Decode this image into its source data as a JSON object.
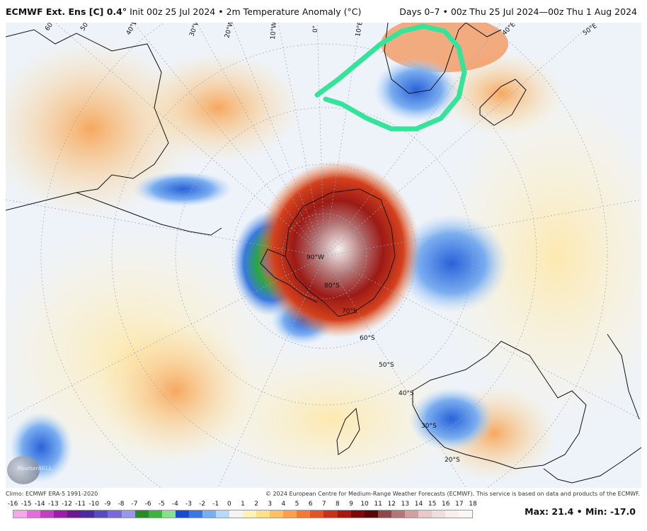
{
  "header": {
    "model": "ECMWF Ext. Ens [C] 0.4°",
    "init": "Init 00z 25 Jul 2024",
    "sep": "•",
    "field": "2m Temperature Anomaly (°C)",
    "range": "Days 0–7 • 00z Thu 25 Jul 2024—00z Thu 1 Aug 2024"
  },
  "map": {
    "lon_labels": [
      "60°W",
      "50°W",
      "40°W",
      "30°W",
      "20°W",
      "10°W",
      "0°",
      "10°E",
      "20°E",
      "30°E",
      "40°E",
      "50°E"
    ],
    "lat_labels": [
      "80°S",
      "70°S",
      "60°S",
      "50°S",
      "40°S",
      "30°S",
      "20°S",
      "90°W"
    ],
    "annotation": "hand-drawn green loop around southern Africa",
    "logo_text": "WeatherBELL"
  },
  "footer": {
    "climo": "Climo: ECMWF ERA-5 1991-2020",
    "copyright": "© 2024 European Centre for Medium-Range Weather Forecasts (ECMWF). This service is based on data and products of the ECMWF."
  },
  "colorbar": {
    "ticks": [
      "-16",
      "-15",
      "-14",
      "-13",
      "-12",
      "-11",
      "-10",
      "-9",
      "-8",
      "-7",
      "-6",
      "-5",
      "-4",
      "-3",
      "-2",
      "-1",
      "0",
      "1",
      "2",
      "3",
      "4",
      "5",
      "6",
      "7",
      "8",
      "9",
      "10",
      "11",
      "12",
      "13",
      "14",
      "15",
      "16",
      "17",
      "18"
    ],
    "colors": [
      "#f4a8e8",
      "#e070d8",
      "#c040c0",
      "#9a1ea8",
      "#6a1a8c",
      "#4a2a9c",
      "#5a4ac0",
      "#7a6ad8",
      "#9a96e8",
      "#2a8a2a",
      "#40b040",
      "#8ae08a",
      "#1a4ad0",
      "#3a78e0",
      "#7aaef0",
      "#b8d8f8",
      "#f4f4f4",
      "#fff2b8",
      "#fde08a",
      "#fcc068",
      "#f8a050",
      "#f07a3a",
      "#e05428",
      "#c8321c",
      "#a81812",
      "#7a0a0a",
      "#5a0606",
      "#8a4a4a",
      "#b07878",
      "#d0a0a0",
      "#e8c8c8",
      "#f0dede",
      "#f8eeee",
      "#fcf6f6"
    ]
  },
  "stats": {
    "max_label": "Max:",
    "max_value": "21.4",
    "bullet": "•",
    "min_label": "Min:",
    "min_value": "-17.0"
  }
}
